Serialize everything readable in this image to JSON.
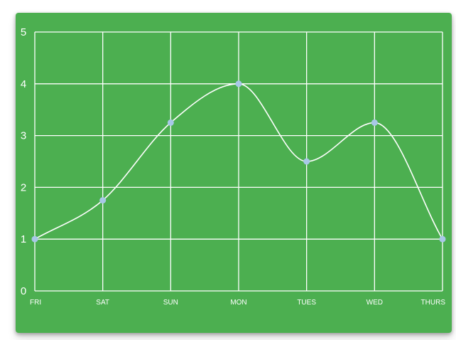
{
  "theme": {
    "card_color": "#4caf50",
    "grid_color": "#ffffff",
    "line_color": "#ffffff",
    "point_color": "#a8c8e8",
    "text_color": "#ffffff"
  },
  "chart_data": {
    "type": "line",
    "categories": [
      "FRI",
      "SAT",
      "SUN",
      "MON",
      "TUES",
      "WED",
      "THURS"
    ],
    "series": [
      {
        "values": [
          1,
          1.75,
          3.25,
          4,
          2.5,
          3.25,
          1
        ]
      }
    ],
    "title": "",
    "xlabel": "",
    "ylabel": "",
    "ylim": [
      0,
      5
    ],
    "yticks": [
      "0",
      "1",
      "2",
      "3",
      "4",
      "5"
    ],
    "grid": true,
    "smooth": true,
    "legend": "none"
  }
}
